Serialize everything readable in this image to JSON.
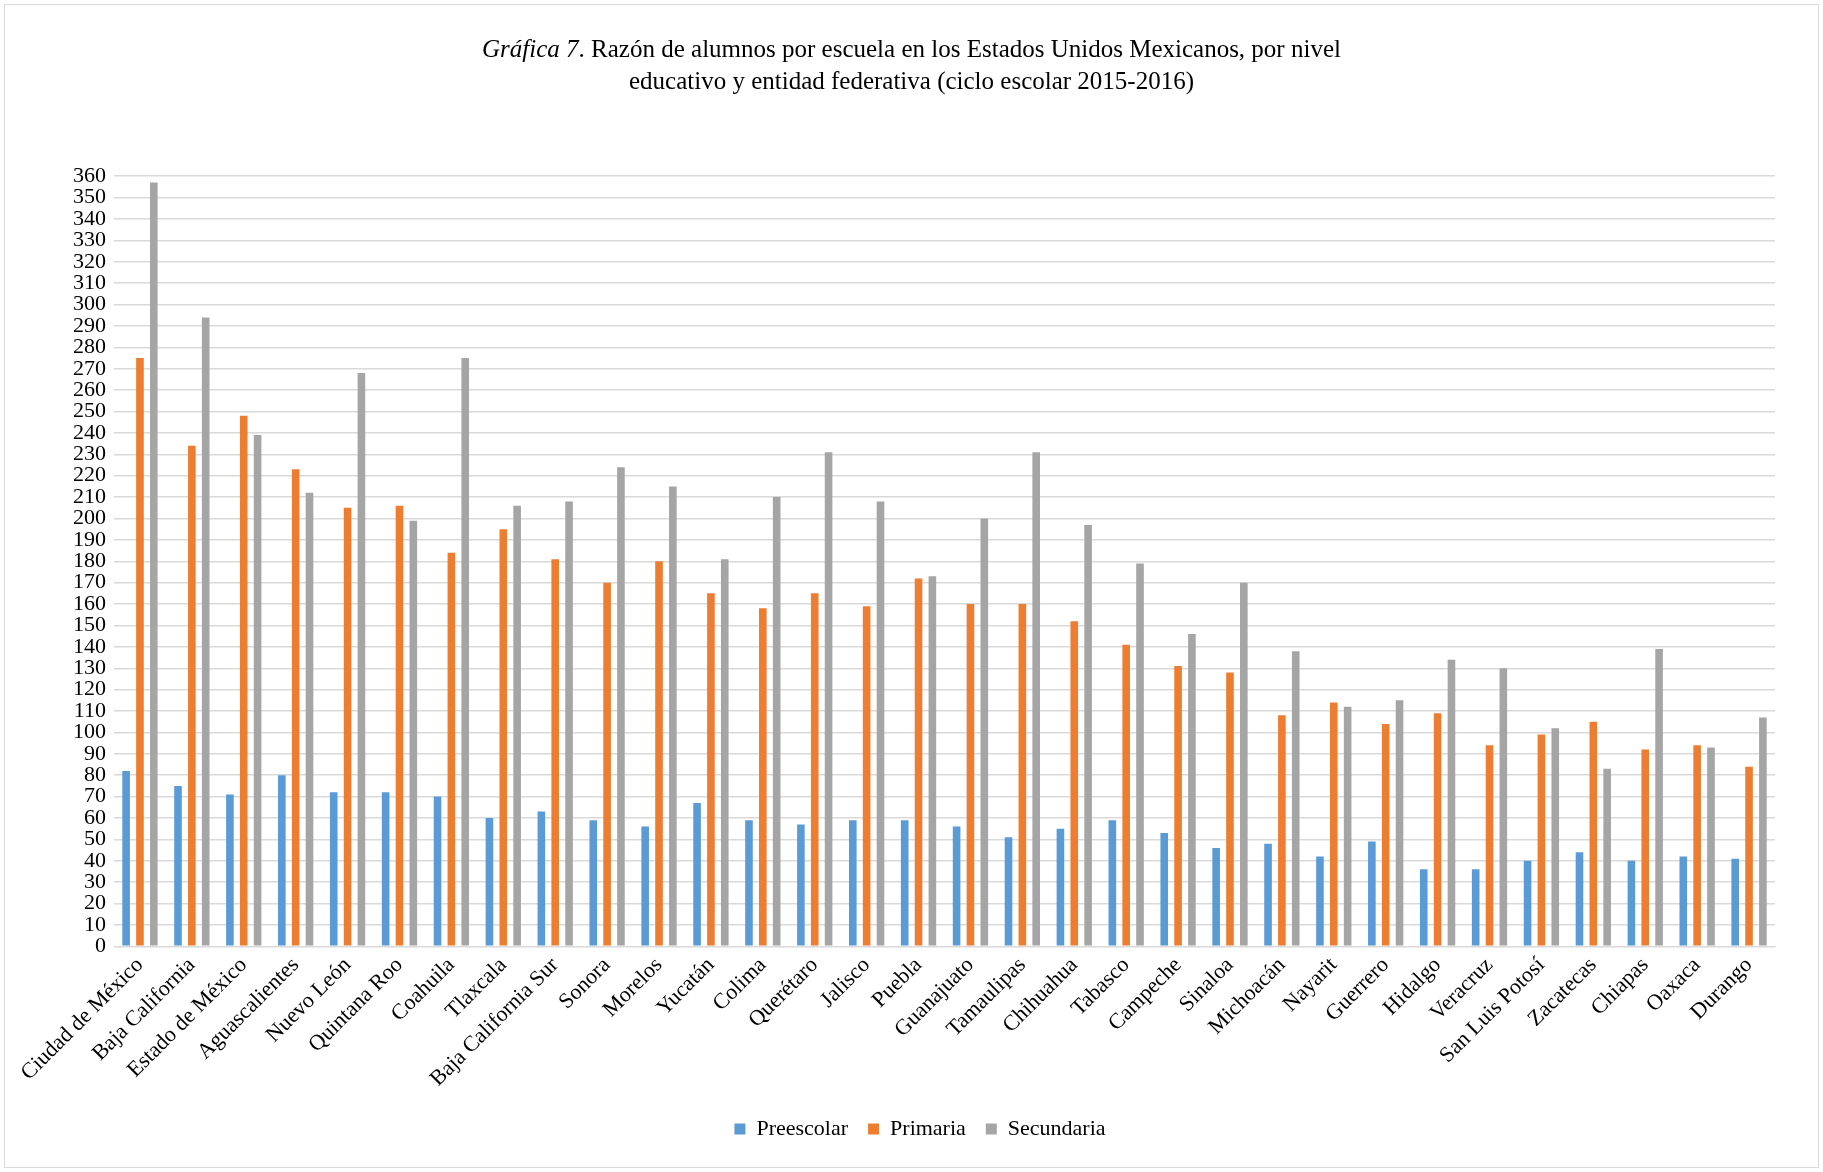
{
  "chart_data": {
    "type": "bar",
    "title": "Gráfica 7. Razón de alumnos por escuela en los Estados Unidos Mexicanos, por nivel educativo y entidad federativa (ciclo escolar 2015-2016)",
    "categories": [
      "Ciudad de México",
      "Baja California",
      "Estado de México",
      "Aguascalientes",
      "Nuevo León",
      "Quintana Roo",
      "Coahuila",
      "Tlaxcala",
      "Baja California Sur",
      "Sonora",
      "Morelos",
      "Yucatán",
      "Colima",
      "Querétaro",
      "Jalisco",
      "Puebla",
      "Guanajuato",
      "Tamaulipas",
      "Chihuahua",
      "Tabasco",
      "Campeche",
      "Sinaloa",
      "Michoacán",
      "Nayarit",
      "Guerrero",
      "Hidalgo",
      "Veracruz",
      "San Luis Potosí",
      "Zacatecas",
      "Chiapas",
      "Oaxaca",
      "Durango"
    ],
    "series": [
      {
        "name": "Preescolar",
        "color": "#5b9bd5",
        "values": [
          82,
          75,
          71,
          80,
          72,
          72,
          70,
          60,
          63,
          59,
          56,
          67,
          59,
          57,
          59,
          59,
          56,
          51,
          55,
          59,
          53,
          46,
          48,
          42,
          49,
          36,
          36,
          40,
          44,
          40,
          42,
          41
        ]
      },
      {
        "name": "Primaria",
        "color": "#ed7d31",
        "values": [
          275,
          234,
          248,
          223,
          205,
          206,
          184,
          195,
          181,
          170,
          180,
          165,
          158,
          165,
          159,
          172,
          160,
          160,
          152,
          141,
          131,
          128,
          108,
          114,
          104,
          109,
          94,
          99,
          105,
          92,
          94,
          84
        ]
      },
      {
        "name": "Secundaria",
        "color": "#a5a5a5",
        "values": [
          357,
          294,
          239,
          212,
          268,
          199,
          275,
          206,
          208,
          224,
          215,
          181,
          210,
          231,
          208,
          173,
          200,
          231,
          197,
          179,
          146,
          170,
          138,
          112,
          115,
          134,
          130,
          102,
          83,
          139,
          93,
          107
        ]
      }
    ],
    "ylim": [
      0,
      360
    ],
    "yticks": [
      0,
      10,
      20,
      30,
      40,
      50,
      60,
      70,
      80,
      90,
      100,
      110,
      120,
      130,
      140,
      150,
      160,
      170,
      180,
      190,
      200,
      210,
      220,
      230,
      240,
      250,
      260,
      270,
      280,
      290,
      300,
      310,
      320,
      330,
      340,
      350,
      360
    ],
    "grid": "y",
    "legend": "bottom"
  }
}
